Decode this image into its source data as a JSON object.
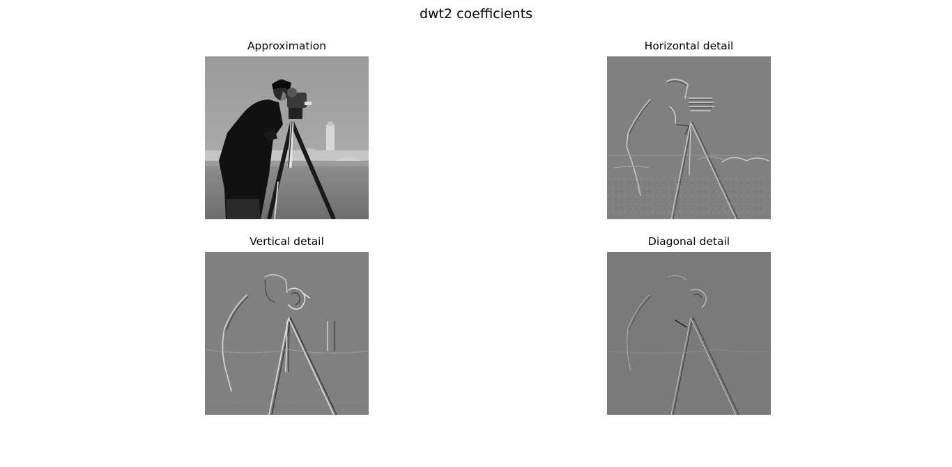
{
  "figure": {
    "suptitle": "dwt2 coefficients",
    "panels": [
      {
        "key": "approx",
        "title": "Approximation",
        "content": "cameraman photo, approximation coefficients",
        "style": "grayscale-photo"
      },
      {
        "key": "horiz",
        "title": "Horizontal detail",
        "content": "cameraman edge map, horizontal detail coefficients",
        "style": "gray-edges"
      },
      {
        "key": "vert",
        "title": "Vertical detail",
        "content": "cameraman edge map, vertical detail coefficients",
        "style": "gray-edges"
      },
      {
        "key": "diag",
        "title": "Diagonal detail",
        "content": "cameraman edge map, diagonal detail coefficients",
        "style": "gray-edges-dark"
      }
    ]
  },
  "colors": {
    "background": "#ffffff",
    "detail_gray": "#808080",
    "diagonal_gray": "#7a7a7a"
  }
}
